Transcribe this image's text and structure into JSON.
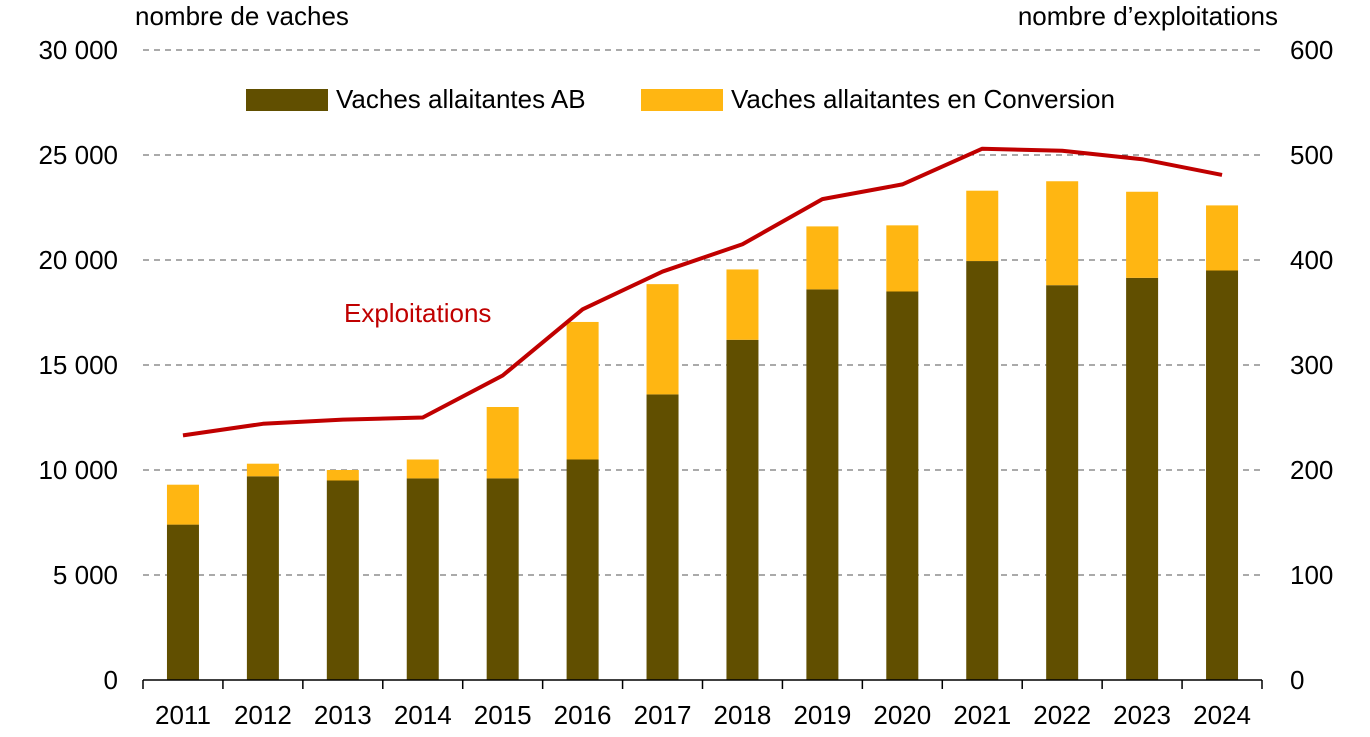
{
  "chart_data": {
    "type": "bar",
    "stacked": true,
    "categories": [
      "2011",
      "2012",
      "2013",
      "2014",
      "2015",
      "2016",
      "2017",
      "2018",
      "2019",
      "2020",
      "2021",
      "2022",
      "2023",
      "2024"
    ],
    "left_axis": {
      "label": "nombre de vaches",
      "ylim": [
        0,
        30000
      ],
      "ticks": [
        0,
        5000,
        10000,
        15000,
        20000,
        25000,
        30000
      ],
      "tick_labels": [
        "0",
        "5 000",
        "10 000",
        "15 000",
        "20 000",
        "25 000",
        "30 000"
      ]
    },
    "right_axis": {
      "label": "nombre d’exploitations",
      "ylim": [
        0,
        600
      ],
      "ticks": [
        0,
        100,
        200,
        300,
        400,
        500,
        600
      ],
      "tick_labels": [
        "0",
        "100",
        "200",
        "300",
        "400",
        "500",
        "600"
      ]
    },
    "grid": true,
    "legend_placement": "top",
    "series": [
      {
        "name": "Vaches allaitantes AB",
        "type": "bar",
        "axis": "left",
        "color": "#614f00",
        "values": [
          7400,
          9700,
          9500,
          9600,
          9600,
          10500,
          13600,
          16200,
          18600,
          18500,
          19950,
          18800,
          19150,
          19500
        ]
      },
      {
        "name": "Vaches allaitantes en Conversion",
        "type": "bar",
        "axis": "left",
        "color": "#ffb612",
        "values": [
          1900,
          600,
          500,
          900,
          3400,
          6550,
          5250,
          3350,
          3000,
          3150,
          3350,
          4950,
          4100,
          3100
        ]
      },
      {
        "name": "Exploitations",
        "type": "line",
        "axis": "right",
        "color": "#c00000",
        "values": [
          233,
          244,
          248,
          250,
          290,
          353,
          389,
          415,
          458,
          472,
          506,
          504,
          496,
          481
        ]
      }
    ]
  }
}
